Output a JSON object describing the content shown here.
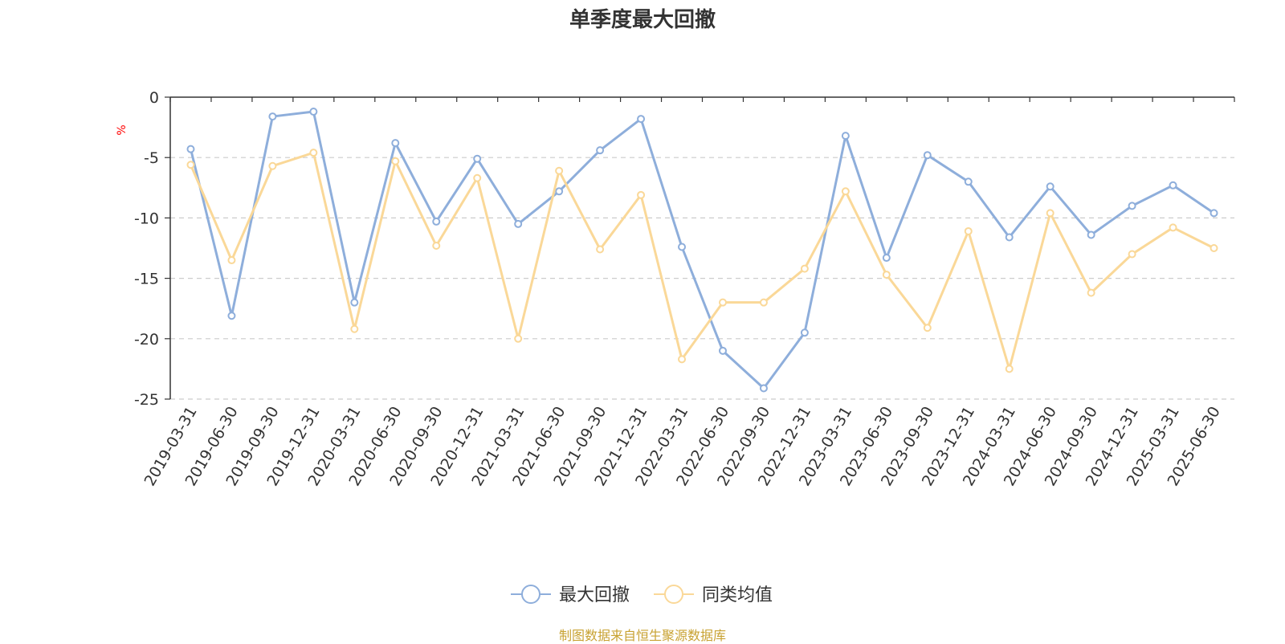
{
  "chart_data": {
    "type": "line",
    "title": "单季度最大回撤",
    "ylabel": "%",
    "ylim": [
      -25,
      0
    ],
    "yticks": [
      0,
      -5,
      -10,
      -15,
      -20,
      -25
    ],
    "grid": true,
    "legend_position": "bottom",
    "categories": [
      "2019-03-31",
      "2019-06-30",
      "2019-09-30",
      "2019-12-31",
      "2020-03-31",
      "2020-06-30",
      "2020-09-30",
      "2020-12-31",
      "2021-03-31",
      "2021-06-30",
      "2021-09-30",
      "2021-12-31",
      "2022-03-31",
      "2022-06-30",
      "2022-09-30",
      "2022-12-31",
      "2023-03-31",
      "2023-06-30",
      "2023-09-30",
      "2023-12-31",
      "2024-03-31",
      "2024-06-30",
      "2024-09-30",
      "2024-12-31",
      "2025-03-31",
      "2025-06-30"
    ],
    "series": [
      {
        "name": "最大回撤",
        "color": "#8eaedb",
        "values": [
          -4.3,
          -18.1,
          -1.6,
          -1.2,
          -17.0,
          -3.8,
          -10.3,
          -5.1,
          -10.5,
          -7.8,
          -4.4,
          -1.8,
          -12.4,
          -21.0,
          -24.1,
          -19.5,
          -3.2,
          -13.3,
          -4.8,
          -7.0,
          -11.6,
          -7.4,
          -11.4,
          -9.0,
          -7.3,
          -9.6
        ]
      },
      {
        "name": "同类均值",
        "color": "#fad898",
        "values": [
          -5.6,
          -13.5,
          -5.7,
          -4.6,
          -19.2,
          -5.3,
          -12.3,
          -6.7,
          -20.0,
          -6.1,
          -12.6,
          -8.1,
          -21.7,
          -17.0,
          -17.0,
          -14.2,
          -7.8,
          -14.7,
          -19.1,
          -11.1,
          -22.5,
          -9.6,
          -16.2,
          -13.0,
          -10.8,
          -12.5
        ]
      }
    ]
  },
  "footer": {
    "source": "制图数据来自恒生聚源数据库"
  }
}
